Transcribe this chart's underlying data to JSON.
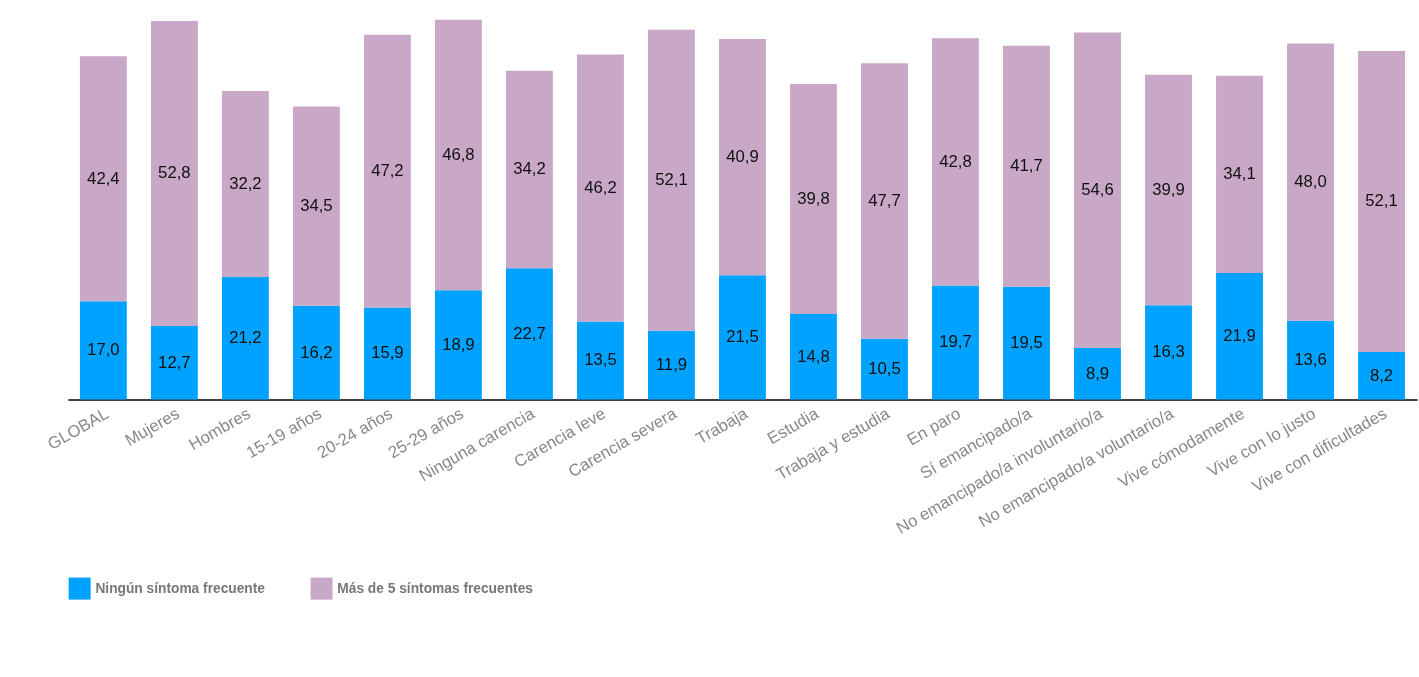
{
  "chart_data": {
    "type": "bar",
    "stacked": true,
    "legend": "bottom",
    "grid": false,
    "categories": [
      "GLOBAL",
      "Mujeres",
      "Hombres",
      "15-19 años",
      "20-24 años",
      "25-29 años",
      "Ninguna carencia",
      "Carencia leve",
      "Carencia severa",
      "Trabaja",
      "Estudia",
      "Trabaja y estudia",
      "En paro",
      "Sí emancipado/a",
      "No emancipado/a involuntario/a",
      "No emancipado/a voluntario/a",
      "Vive cómodamente",
      "Vive con lo justo",
      "Vive con dificultades"
    ],
    "series": [
      {
        "name": "Ningún síntoma frecuente",
        "color": "#00a2ff",
        "values": [
          17.0,
          12.7,
          21.2,
          16.2,
          15.9,
          18.9,
          22.7,
          13.5,
          11.9,
          21.5,
          14.8,
          10.5,
          19.7,
          19.5,
          8.9,
          16.3,
          21.9,
          13.6,
          8.2
        ],
        "value_labels": [
          "17,0",
          "12,7",
          "21,2",
          "16,2",
          "15,9",
          "18,9",
          "22,7",
          "13,5",
          "11,9",
          "21,5",
          "14,8",
          "10,5",
          "19,7",
          "19,5",
          "8,9",
          "16,3",
          "21,9",
          "13,6",
          "8,2"
        ]
      },
      {
        "name": "Más de 5 síntomas frecuentes",
        "color": "#c9a7c6",
        "values": [
          42.4,
          52.8,
          32.2,
          34.5,
          47.2,
          46.8,
          34.2,
          46.2,
          52.1,
          40.9,
          39.8,
          47.7,
          42.8,
          41.7,
          54.6,
          39.9,
          34.1,
          48.0,
          52.1
        ],
        "value_labels": [
          "42,4",
          "52,8",
          "32,2",
          "34,5",
          "47,2",
          "46,8",
          "34,2",
          "46,2",
          "52,1",
          "40,9",
          "39,8",
          "47,7",
          "42,8",
          "41,7",
          "54,6",
          "39,9",
          "34,1",
          "48,0",
          "52,1"
        ]
      }
    ]
  }
}
